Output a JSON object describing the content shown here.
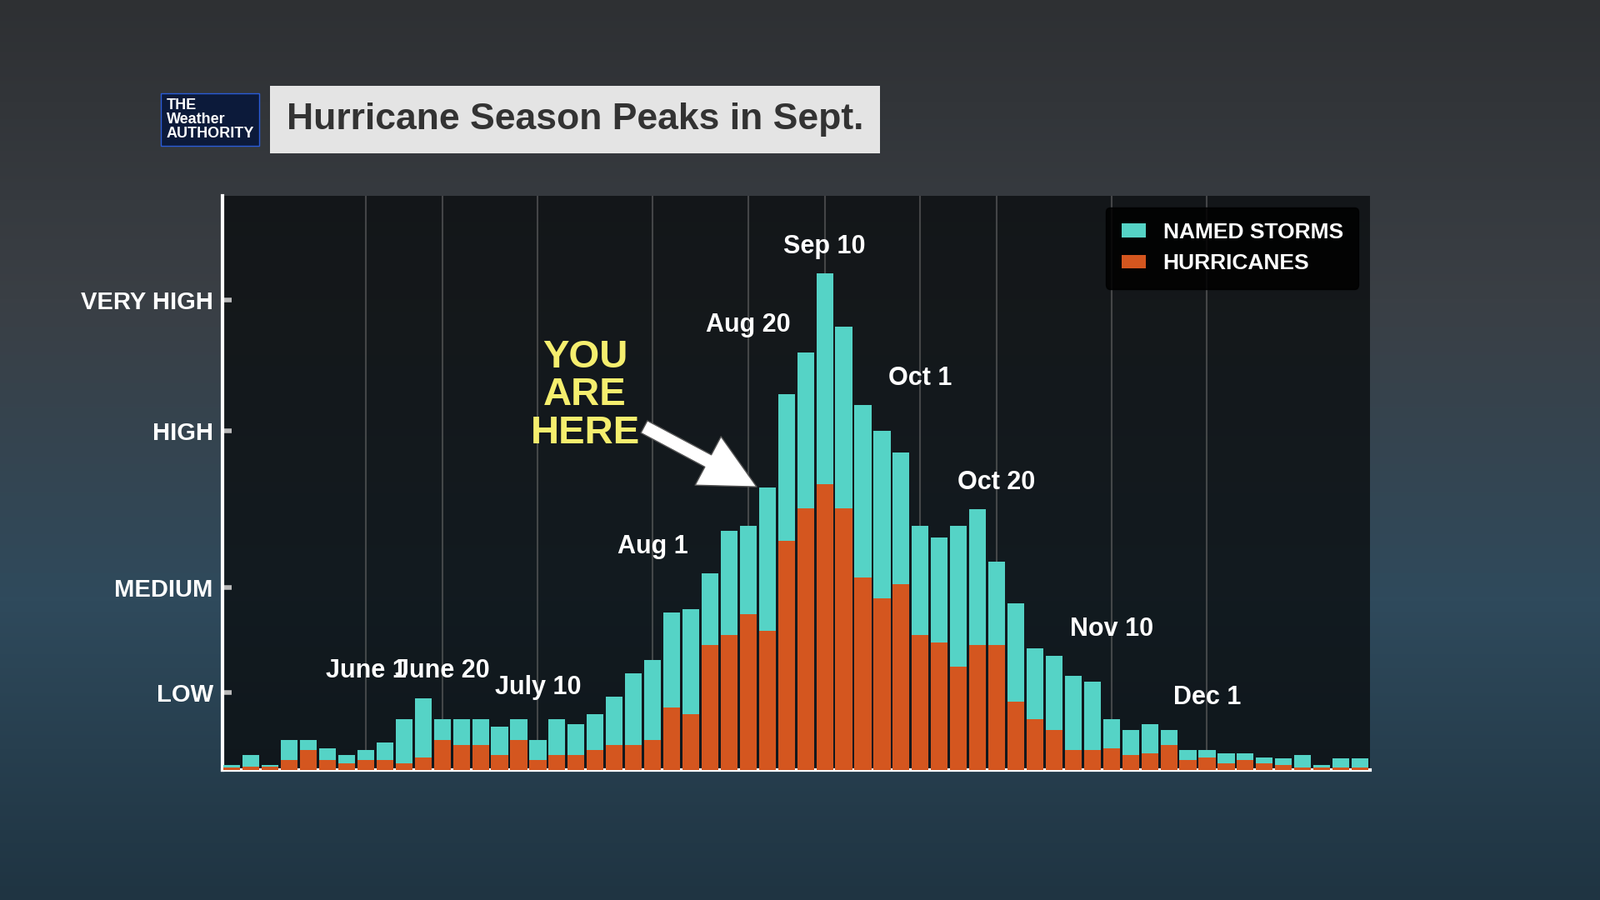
{
  "chart_data": {
    "type": "bar",
    "title": "Hurricane Season Peaks in Sept.",
    "logo": [
      "THE",
      "Weather",
      "AUTHORITY"
    ],
    "categories": [
      null,
      null,
      null,
      null,
      null,
      null,
      null,
      "June 1",
      null,
      null,
      null,
      "June 20",
      null,
      null,
      null,
      null,
      "July 10",
      null,
      null,
      null,
      null,
      null,
      "Aug 1",
      null,
      null,
      null,
      null,
      "Aug 20",
      null,
      null,
      null,
      "Sep 10",
      null,
      null,
      null,
      null,
      "Oct 1",
      null,
      null,
      null,
      "Oct 20",
      null,
      null,
      null,
      null,
      null,
      "Nov 10",
      null,
      null,
      null,
      null,
      "Dec 1",
      null,
      null,
      null,
      null,
      null,
      null,
      null,
      null
    ],
    "series": [
      {
        "name": "NAMED STORMS",
        "color": "#55d3c6",
        "values": [
          0.5,
          1.5,
          0.5,
          3.0,
          3.0,
          2.2,
          1.5,
          2.0,
          2.7,
          5.0,
          7.1,
          5.0,
          5.0,
          5.0,
          4.3,
          5.0,
          3.0,
          5.0,
          4.5,
          5.5,
          7.2,
          9.5,
          10.8,
          15.5,
          15.8,
          19.3,
          23.5,
          24.0,
          27.7,
          36.9,
          41.0,
          48.7,
          43.5,
          35.8,
          33.3,
          31.2,
          24.0,
          22.8,
          24.0,
          25.6,
          20.5,
          16.4,
          12.0,
          11.2,
          9.3,
          8.7,
          5.0,
          4.0,
          4.5,
          4.0,
          2.0,
          2.0,
          1.7,
          1.7,
          1.3,
          1.2,
          1.5,
          0.5,
          1.2,
          1.2
        ]
      },
      {
        "name": "HURRICANES",
        "color": "#d4561f",
        "values": [
          0.3,
          0.4,
          0.4,
          1.0,
          2.0,
          1.0,
          0.7,
          1.0,
          1.0,
          0.7,
          1.3,
          3.0,
          2.5,
          2.5,
          1.5,
          3.0,
          1.0,
          1.5,
          1.5,
          2.0,
          2.5,
          2.5,
          3.0,
          6.2,
          5.5,
          12.3,
          13.3,
          15.3,
          13.7,
          22.5,
          25.7,
          28.1,
          25.7,
          18.9,
          16.9,
          18.3,
          13.3,
          12.5,
          10.2,
          12.3,
          12.3,
          6.7,
          5.0,
          4.0,
          2.0,
          2.0,
          2.2,
          1.5,
          1.7,
          2.5,
          1.0,
          1.3,
          0.7,
          1.0,
          0.7,
          0.5,
          0.3,
          0.3,
          0.3,
          0.3
        ]
      }
    ],
    "stacked": false,
    "ylim": [
      0,
      56.3
    ],
    "yticks": [
      {
        "value": 7.6,
        "label": "LOW"
      },
      {
        "value": 17.9,
        "label": "MEDIUM"
      },
      {
        "value": 33.3,
        "label": "HIGH"
      },
      {
        "value": 46.1,
        "label": "VERY HIGH"
      }
    ],
    "grid": "x",
    "legend": "upper right",
    "tick_labels": "y",
    "annotations": [
      {
        "text": "YOU\nARE\nHERE",
        "x": 28
      }
    ]
  }
}
